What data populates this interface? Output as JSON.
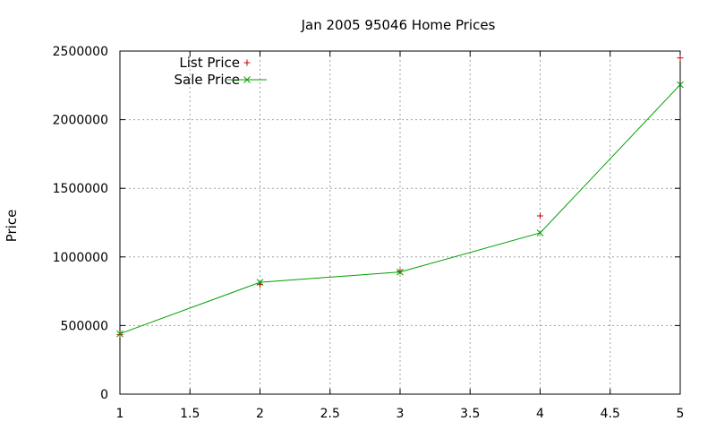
{
  "chart_data": {
    "type": "line",
    "title": "Jan 2005 95046 Home Prices",
    "xlabel": "",
    "ylabel": "Price",
    "xlim": [
      1,
      5
    ],
    "ylim": [
      0,
      2500000
    ],
    "x_ticks": [
      "1",
      "1.5",
      "2",
      "2.5",
      "3",
      "3.5",
      "4",
      "4.5",
      "5"
    ],
    "y_ticks": [
      "0",
      "500000",
      "1000000",
      "1500000",
      "2000000",
      "2500000"
    ],
    "grid": true,
    "legend_position": "top-left",
    "series": [
      {
        "name": "List Price",
        "style": "points",
        "marker": "+",
        "color": "#cc0000",
        "x": [
          1,
          2,
          3,
          4,
          5
        ],
        "y": [
          435000,
          799000,
          895000,
          1299000,
          2450000
        ]
      },
      {
        "name": "Sale Price",
        "style": "linespoints",
        "marker": "x",
        "color": "#00a000",
        "x": [
          1,
          2,
          3,
          4,
          5
        ],
        "y": [
          440000,
          815000,
          890000,
          1175000,
          2255000
        ]
      }
    ]
  }
}
